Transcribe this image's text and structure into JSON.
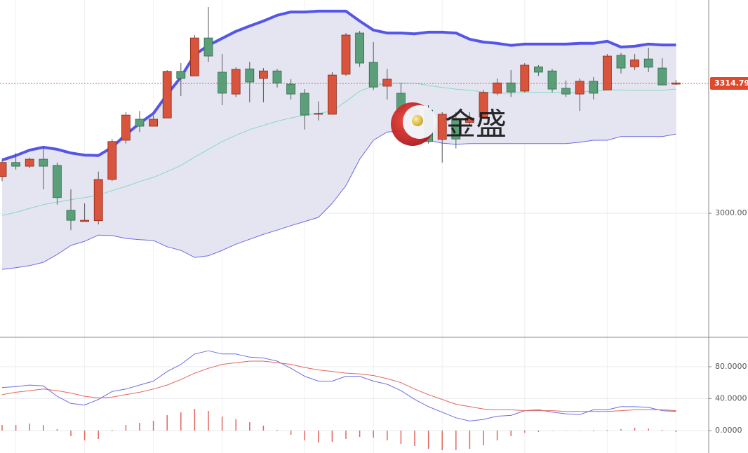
{
  "chart_data": [
    {
      "type": "candlestick",
      "ylim": [
        2701,
        3517
      ],
      "yticks": [
        {
          "value": 3000,
          "label": "3000.00"
        }
      ],
      "grid": true,
      "up_color": "#d8543c",
      "down_color": "#5b9e7a",
      "ohlc": [
        [
          3089,
          3129,
          3078,
          3123
        ],
        [
          3123,
          3146,
          3106,
          3114
        ],
        [
          3114,
          3135,
          3109,
          3131
        ],
        [
          3131,
          3163,
          3058,
          3114
        ],
        [
          3116,
          3123,
          3021,
          3038
        ],
        [
          3007,
          3058,
          2959,
          2983
        ],
        [
          2980,
          3024,
          2980,
          2983
        ],
        [
          2982,
          3101,
          2973,
          3082
        ],
        [
          3082,
          3180,
          3078,
          3174
        ],
        [
          3177,
          3245,
          3169,
          3238
        ],
        [
          3228,
          3248,
          3197,
          3211
        ],
        [
          3211,
          3237,
          3211,
          3228
        ],
        [
          3231,
          3347,
          3231,
          3344
        ],
        [
          3344,
          3364,
          3284,
          3327
        ],
        [
          3333,
          3432,
          3333,
          3425
        ],
        [
          3425,
          3500,
          3367,
          3381
        ],
        [
          3342,
          3386,
          3262,
          3291
        ],
        [
          3289,
          3354,
          3282,
          3349
        ],
        [
          3350,
          3367,
          3269,
          3318
        ],
        [
          3327,
          3352,
          3269,
          3345
        ],
        [
          3345,
          3350,
          3305,
          3316
        ],
        [
          3313,
          3325,
          3276,
          3289
        ],
        [
          3291,
          3301,
          3203,
          3238
        ],
        [
          3240,
          3271,
          3225,
          3242
        ],
        [
          3240,
          3342,
          3240,
          3335
        ],
        [
          3337,
          3437,
          3333,
          3432
        ],
        [
          3437,
          3442,
          3355,
          3364
        ],
        [
          3366,
          3415,
          3299,
          3306
        ],
        [
          3308,
          3350,
          3276,
          3325
        ],
        [
          3291,
          3316,
          3228,
          3245
        ],
        [
          3238,
          3262,
          3220,
          3250
        ],
        [
          3250,
          3262,
          3169,
          3174
        ],
        [
          3179,
          3245,
          3123,
          3240
        ],
        [
          3228,
          3245,
          3157,
          3180
        ],
        [
          3220,
          3245,
          3211,
          3231
        ],
        [
          3233,
          3299,
          3233,
          3293
        ],
        [
          3291,
          3327,
          3286,
          3316
        ],
        [
          3316,
          3347,
          3282,
          3294
        ],
        [
          3296,
          3364,
          3293,
          3359
        ],
        [
          3355,
          3359,
          3333,
          3342
        ],
        [
          3345,
          3350,
          3293,
          3301
        ],
        [
          3303,
          3322,
          3282,
          3289
        ],
        [
          3289,
          3327,
          3248,
          3320
        ],
        [
          3320,
          3330,
          3276,
          3291
        ],
        [
          3299,
          3386,
          3299,
          3381
        ],
        [
          3383,
          3389,
          3339,
          3352
        ],
        [
          3355,
          3386,
          3347,
          3372
        ],
        [
          3374,
          3401,
          3342,
          3354
        ],
        [
          3352,
          3376,
          3310,
          3311
        ],
        [
          3313,
          3323,
          3311,
          3316
        ]
      ],
      "bands": {
        "fill": "#e5e5f1",
        "upper": {
          "color": "#5555e8",
          "values": [
            3129,
            3140,
            3153,
            3160,
            3155,
            3146,
            3141,
            3140,
            3160,
            3191,
            3218,
            3242,
            3288,
            3330,
            3384,
            3407,
            3424,
            3441,
            3454,
            3466,
            3480,
            3488,
            3488,
            3490,
            3490,
            3490,
            3466,
            3444,
            3437,
            3437,
            3435,
            3439,
            3439,
            3437,
            3422,
            3415,
            3412,
            3407,
            3410,
            3410,
            3410,
            3410,
            3412,
            3412,
            3417,
            3403,
            3405,
            3410,
            3408,
            3408
          ]
        },
        "middle": {
          "color": "#86d8c4",
          "values": [
            2995,
            3002,
            3012,
            3021,
            3027,
            3033,
            3038,
            3044,
            3055,
            3065,
            3077,
            3087,
            3101,
            3116,
            3136,
            3155,
            3174,
            3189,
            3203,
            3213,
            3223,
            3231,
            3238,
            3242,
            3248,
            3271,
            3296,
            3308,
            3315,
            3316,
            3315,
            3310,
            3305,
            3301,
            3298,
            3294,
            3291,
            3291,
            3293,
            3293,
            3293,
            3293,
            3294,
            3296,
            3299,
            3299,
            3298,
            3298,
            3298,
            3301
          ]
        },
        "lower": {
          "color": "#6a6ae6",
          "values": [
            2864,
            2868,
            2873,
            2881,
            2900,
            2922,
            2932,
            2947,
            2946,
            2939,
            2936,
            2934,
            2919,
            2910,
            2893,
            2897,
            2910,
            2925,
            2937,
            2949,
            2959,
            2970,
            2980,
            2990,
            3024,
            3067,
            3131,
            3177,
            3197,
            3199,
            3186,
            3177,
            3170,
            3167,
            3169,
            3169,
            3169,
            3169,
            3169,
            3169,
            3169,
            3169,
            3172,
            3177,
            3177,
            3186,
            3186,
            3186,
            3186,
            3192
          ]
        }
      },
      "last_price": {
        "value": 3314.79,
        "label": "3314.790"
      },
      "last_price_color": "#e0492c",
      "watermark": "金盛"
    },
    {
      "type": "line",
      "ylim": [
        -28.1,
        116
      ],
      "yticks": [
        {
          "value": 80,
          "label": "80.0000"
        },
        {
          "value": 40,
          "label": "40.0000"
        },
        {
          "value": 0,
          "label": "0.0000"
        }
      ],
      "grid": true,
      "series": [
        {
          "color": "#6d6de2",
          "values": [
            54,
            55,
            57,
            56,
            43,
            34,
            32,
            39,
            49,
            52,
            57,
            62,
            74,
            83,
            96,
            100,
            96,
            96,
            92,
            91,
            87,
            78,
            68,
            62,
            62,
            68,
            68,
            62,
            58,
            50,
            39,
            30,
            23,
            16,
            12,
            14,
            18,
            19,
            25,
            26,
            23,
            21,
            20,
            26,
            26,
            30,
            30,
            29,
            25,
            24
          ]
        },
        {
          "color": "#e2665e",
          "values": [
            45,
            48,
            50,
            52,
            50,
            47,
            43,
            41,
            42,
            45,
            48,
            52,
            57,
            64,
            72,
            78,
            83,
            85,
            87,
            87,
            85,
            83,
            79,
            76,
            74,
            72,
            71,
            69,
            65,
            60,
            52,
            45,
            39,
            33,
            30,
            27,
            26,
            26,
            25,
            25,
            25,
            24,
            24,
            24,
            24,
            25,
            26,
            26,
            26,
            25
          ]
        }
      ],
      "bars": {
        "color": "#e2665e",
        "values": [
          7.0,
          7.0,
          8.8,
          7.0,
          1.8,
          -7.0,
          -12.3,
          -10.5,
          0.9,
          7.0,
          9.7,
          12.3,
          19.3,
          22.9,
          27.2,
          24.6,
          17.6,
          14.1,
          10.5,
          6.2,
          0.9,
          -5.3,
          -12.3,
          -14.9,
          -14.1,
          -10.5,
          -7.9,
          -8.8,
          -12.3,
          -16.7,
          -19.3,
          -22.9,
          -24.6,
          -24.6,
          -22.9,
          -18.5,
          -12.3,
          -7.0,
          -2.6,
          -1.8,
          0,
          0,
          0,
          -0.9,
          0.9,
          1.8,
          3.5,
          2.6,
          0.9,
          -1.8
        ]
      }
    }
  ]
}
